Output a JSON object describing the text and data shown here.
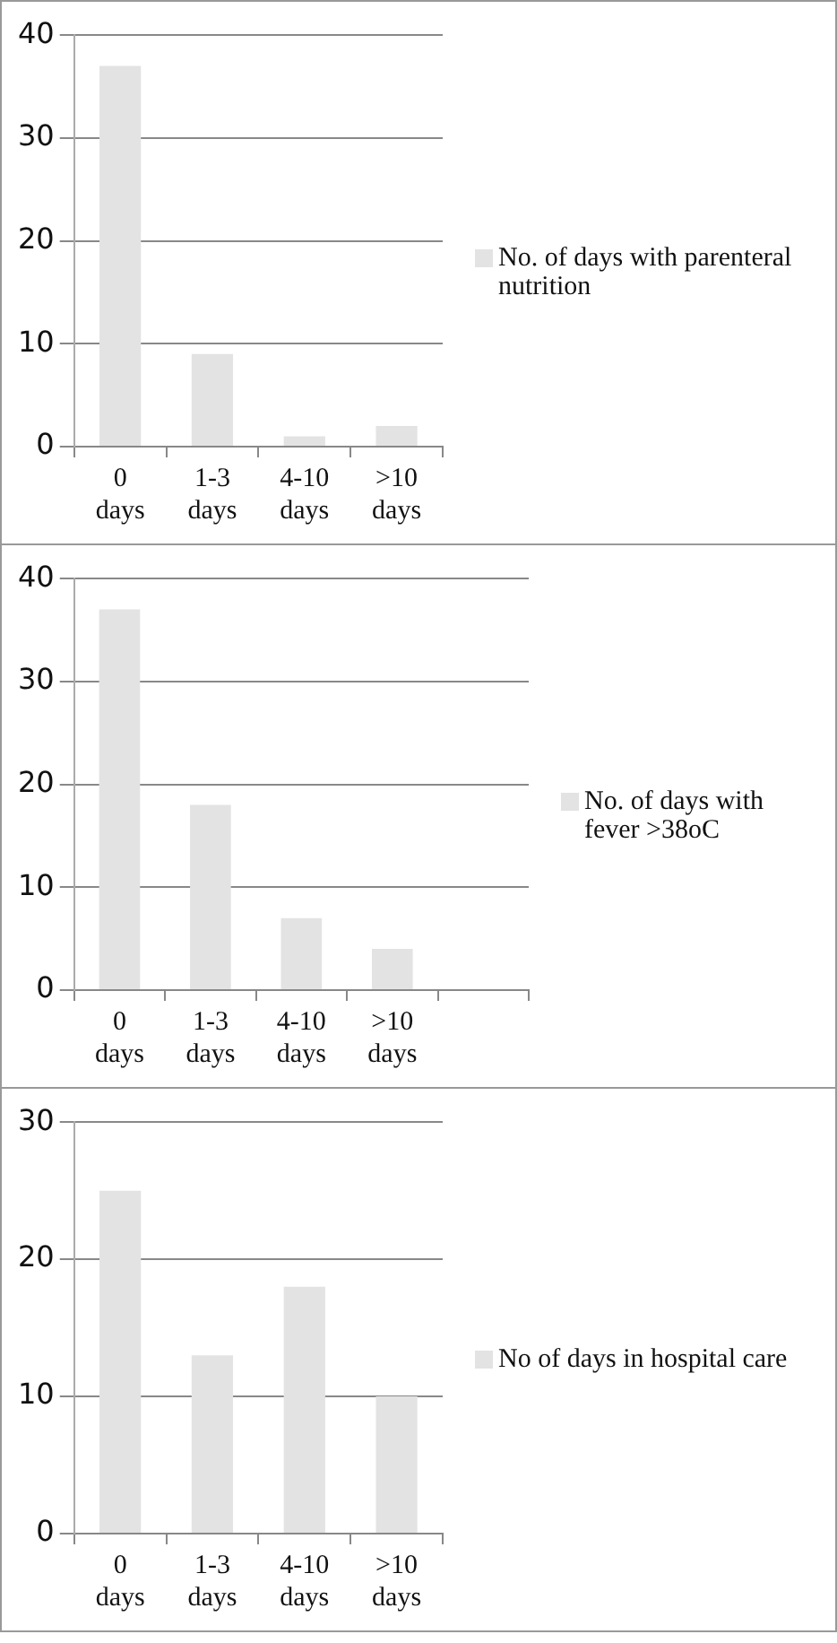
{
  "chart_data": [
    {
      "type": "bar",
      "categories": [
        "0 days",
        "1-3 days",
        "4-10 days",
        ">10 days"
      ],
      "series": [
        {
          "name": "No. of days with parenteral nutrition",
          "color": "#e3e3e3",
          "values": [
            37,
            9,
            1,
            2
          ]
        }
      ],
      "ylim": [
        0,
        40
      ],
      "yticks": [
        0,
        10,
        20,
        30,
        40
      ],
      "grid": "y",
      "legend": "right"
    },
    {
      "type": "bar",
      "categories": [
        "0 days",
        "1-3 days",
        "4-10 days",
        ">10 days",
        null
      ],
      "series": [
        {
          "name": "No. of days with fever >38oC",
          "color": "#e3e3e3",
          "values": [
            37,
            18,
            7,
            4,
            null
          ]
        }
      ],
      "ylim": [
        0,
        40
      ],
      "yticks": [
        0,
        10,
        20,
        30,
        40
      ],
      "grid": "y",
      "legend": "right"
    },
    {
      "type": "bar",
      "categories": [
        "0 days",
        "1-3 days",
        "4-10 days",
        ">10 days"
      ],
      "series": [
        {
          "name": "No of days in hospital care",
          "color": "#e3e3e3",
          "values": [
            25,
            13,
            18,
            10
          ]
        }
      ],
      "ylim": [
        0,
        30
      ],
      "yticks": [
        0,
        10,
        20,
        30
      ],
      "grid": "y",
      "legend": "right"
    }
  ]
}
